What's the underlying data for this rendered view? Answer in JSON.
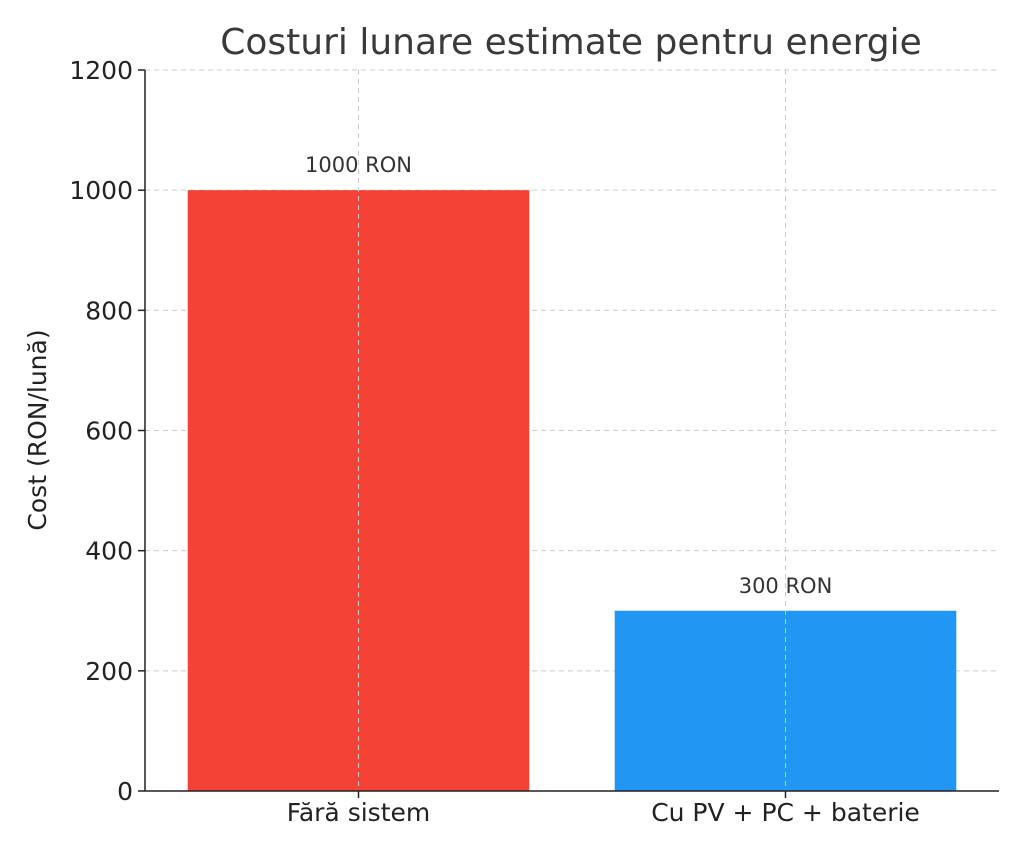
{
  "chart_data": {
    "type": "bar",
    "title": "Costuri lunare estimate pentru energie",
    "xlabel": "",
    "ylabel": "Cost (RON/lună)",
    "categories": [
      "Fără sistem",
      "Cu PV + PC + baterie"
    ],
    "values": [
      1000,
      300
    ],
    "data_labels": [
      "1000 RON",
      "300 RON"
    ],
    "colors": [
      "#F44336",
      "#2196F3"
    ],
    "ylim": [
      0,
      1200
    ],
    "yticks": [
      0,
      200,
      400,
      600,
      800,
      1000,
      1200
    ],
    "grid": true
  }
}
